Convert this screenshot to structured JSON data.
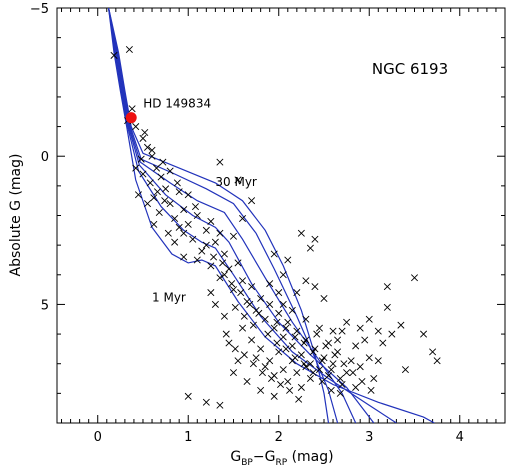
{
  "chart_data": {
    "type": "scatter",
    "title": "NGC 6193",
    "xlabel": "G_BP−G_RP (mag)",
    "xlabel_parts": {
      "prefix": "G",
      "sub1": "BP",
      "mid": "−G",
      "sub2": "RP",
      "suffix": " (mag)"
    },
    "ylabel": "Absolute G (mag)",
    "xlim": [
      -0.45,
      4.5
    ],
    "ylim": [
      -5,
      9
    ],
    "y_inverted": true,
    "x_ticks": [
      0,
      1,
      2,
      3,
      4
    ],
    "y_ticks": [
      -5,
      0,
      5
    ],
    "grid": false,
    "annotations": {
      "star_label": "HD 149834",
      "young_label": "1 Myr",
      "old_label": "30 Myr"
    },
    "colors": {
      "isochrone": "#2233bb",
      "highlight": "#ee1111",
      "marker": "#000000"
    },
    "highlight_point": {
      "name": "HD 149834",
      "x": 0.37,
      "y": -1.3
    },
    "isochrones": [
      {
        "age": "1 Myr",
        "points": [
          [
            0.12,
            -5.0
          ],
          [
            0.18,
            -3.5
          ],
          [
            0.25,
            -2.2
          ],
          [
            0.32,
            -1.0
          ],
          [
            0.42,
            0.8
          ],
          [
            0.6,
            2.4
          ],
          [
            0.82,
            3.3
          ],
          [
            1.0,
            3.6
          ],
          [
            1.15,
            3.5
          ],
          [
            1.3,
            3.7
          ],
          [
            1.55,
            4.9
          ],
          [
            1.85,
            6.1
          ],
          [
            2.2,
            7.0
          ],
          [
            2.6,
            7.7
          ],
          [
            3.1,
            8.3
          ],
          [
            3.6,
            8.8
          ],
          [
            3.72,
            9.0
          ]
        ]
      },
      {
        "age": "",
        "points": [
          [
            0.12,
            -5.0
          ],
          [
            0.19,
            -3.5
          ],
          [
            0.26,
            -2.2
          ],
          [
            0.33,
            -1.0
          ],
          [
            0.45,
            0.5
          ],
          [
            0.7,
            1.7
          ],
          [
            0.95,
            2.5
          ],
          [
            1.15,
            2.9
          ],
          [
            1.3,
            3.1
          ],
          [
            1.5,
            4.0
          ],
          [
            1.8,
            5.4
          ],
          [
            2.15,
            6.6
          ],
          [
            2.55,
            7.5
          ],
          [
            3.0,
            8.4
          ],
          [
            3.3,
            9.0
          ]
        ]
      },
      {
        "age": "",
        "points": [
          [
            0.12,
            -5.0
          ],
          [
            0.2,
            -3.5
          ],
          [
            0.27,
            -2.2
          ],
          [
            0.34,
            -1.0
          ],
          [
            0.46,
            0.3
          ],
          [
            0.75,
            1.3
          ],
          [
            1.05,
            2.0
          ],
          [
            1.3,
            2.4
          ],
          [
            1.45,
            2.9
          ],
          [
            1.7,
            4.3
          ],
          [
            2.0,
            5.6
          ],
          [
            2.35,
            6.7
          ],
          [
            2.75,
            7.8
          ],
          [
            3.05,
            9.0
          ]
        ]
      },
      {
        "age": "",
        "points": [
          [
            0.12,
            -5.0
          ],
          [
            0.21,
            -3.5
          ],
          [
            0.28,
            -2.2
          ],
          [
            0.35,
            -1.0
          ],
          [
            0.47,
            0.2
          ],
          [
            0.8,
            0.9
          ],
          [
            1.1,
            1.5
          ],
          [
            1.4,
            1.9
          ],
          [
            1.6,
            2.8
          ],
          [
            1.85,
            4.1
          ],
          [
            2.15,
            5.6
          ],
          [
            2.45,
            6.9
          ],
          [
            2.7,
            8.0
          ],
          [
            2.85,
            9.0
          ]
        ]
      },
      {
        "age": "",
        "points": [
          [
            0.12,
            -5.0
          ],
          [
            0.22,
            -3.5
          ],
          [
            0.29,
            -2.2
          ],
          [
            0.36,
            -1.0
          ],
          [
            0.48,
            0.1
          ],
          [
            0.85,
            0.6
          ],
          [
            1.2,
            1.1
          ],
          [
            1.5,
            1.6
          ],
          [
            1.75,
            2.6
          ],
          [
            1.95,
            3.8
          ],
          [
            2.2,
            5.4
          ],
          [
            2.4,
            6.8
          ],
          [
            2.55,
            7.9
          ],
          [
            2.65,
            9.0
          ]
        ]
      },
      {
        "age": "30 Myr",
        "points": [
          [
            0.12,
            -5.0
          ],
          [
            0.23,
            -3.5
          ],
          [
            0.3,
            -2.2
          ],
          [
            0.37,
            -1.0
          ],
          [
            0.5,
            -0.1
          ],
          [
            0.9,
            0.4
          ],
          [
            1.3,
            0.9
          ],
          [
            1.6,
            1.5
          ],
          [
            1.85,
            2.5
          ],
          [
            2.05,
            3.7
          ],
          [
            2.25,
            5.2
          ],
          [
            2.4,
            6.7
          ],
          [
            2.5,
            8.0
          ],
          [
            2.55,
            9.0
          ]
        ]
      }
    ],
    "points": [
      [
        0.18,
        -3.4
      ],
      [
        0.35,
        -3.6
      ],
      [
        0.33,
        -1.2
      ],
      [
        0.38,
        -1.6
      ],
      [
        0.42,
        -1.0
      ],
      [
        0.5,
        -0.6
      ],
      [
        0.55,
        -0.3
      ],
      [
        0.48,
        0.1
      ],
      [
        0.6,
        0.0
      ],
      [
        0.65,
        0.4
      ],
      [
        0.58,
        0.9
      ],
      [
        0.5,
        0.6
      ],
      [
        0.7,
        0.7
      ],
      [
        0.75,
        1.1
      ],
      [
        0.62,
        1.4
      ],
      [
        0.8,
        1.6
      ],
      [
        0.9,
        1.2
      ],
      [
        0.68,
        1.9
      ],
      [
        0.85,
        2.1
      ],
      [
        0.95,
        1.8
      ],
      [
        1.0,
        2.3
      ],
      [
        1.1,
        2.0
      ],
      [
        0.78,
        2.6
      ],
      [
        1.05,
        2.8
      ],
      [
        1.2,
        2.5
      ],
      [
        1.15,
        3.2
      ],
      [
        1.3,
        2.9
      ],
      [
        0.95,
        3.4
      ],
      [
        1.25,
        3.7
      ],
      [
        1.4,
        3.3
      ],
      [
        1.35,
        4.1
      ],
      [
        1.45,
        3.8
      ],
      [
        1.55,
        3.6
      ],
      [
        1.5,
        4.5
      ],
      [
        1.6,
        4.2
      ],
      [
        1.65,
        4.9
      ],
      [
        1.7,
        4.4
      ],
      [
        1.75,
        5.2
      ],
      [
        1.8,
        4.8
      ],
      [
        1.85,
        5.5
      ],
      [
        1.9,
        5.0
      ],
      [
        1.95,
        5.8
      ],
      [
        2.0,
        5.3
      ],
      [
        2.05,
        6.1
      ],
      [
        2.1,
        5.6
      ],
      [
        2.15,
        6.4
      ],
      [
        2.2,
        5.9
      ],
      [
        2.25,
        6.7
      ],
      [
        2.3,
        6.2
      ],
      [
        2.35,
        7.0
      ],
      [
        2.4,
        6.5
      ],
      [
        1.6,
        5.8
      ],
      [
        1.7,
        6.2
      ],
      [
        1.75,
        6.8
      ],
      [
        1.8,
        6.5
      ],
      [
        1.85,
        7.1
      ],
      [
        1.9,
        6.9
      ],
      [
        1.95,
        7.4
      ],
      [
        2.0,
        6.6
      ],
      [
        2.05,
        7.2
      ],
      [
        2.1,
        7.6
      ],
      [
        2.15,
        6.9
      ],
      [
        2.2,
        7.3
      ],
      [
        2.25,
        7.8
      ],
      [
        2.3,
        7.1
      ],
      [
        2.35,
        7.5
      ],
      [
        2.45,
        7.2
      ],
      [
        2.5,
        6.8
      ],
      [
        2.55,
        7.4
      ],
      [
        2.6,
        7.0
      ],
      [
        2.65,
        6.6
      ],
      [
        2.7,
        7.7
      ],
      [
        2.75,
        7.3
      ],
      [
        2.8,
        6.9
      ],
      [
        2.85,
        7.8
      ],
      [
        2.9,
        7.1
      ],
      [
        3.0,
        6.8
      ],
      [
        3.05,
        7.5
      ],
      [
        3.15,
        6.3
      ],
      [
        3.25,
        6.0
      ],
      [
        3.4,
        7.2
      ],
      [
        3.35,
        5.7
      ],
      [
        1.45,
        6.3
      ],
      [
        1.55,
        6.9
      ],
      [
        1.4,
        5.4
      ],
      [
        1.3,
        5.0
      ],
      [
        1.25,
        4.6
      ],
      [
        1.5,
        7.3
      ],
      [
        1.65,
        7.6
      ],
      [
        1.8,
        7.9
      ],
      [
        1.95,
        8.1
      ],
      [
        2.05,
        5.0
      ],
      [
        2.15,
        5.2
      ],
      [
        2.3,
        5.5
      ],
      [
        2.45,
        5.8
      ],
      [
        2.6,
        5.9
      ],
      [
        2.75,
        5.6
      ],
      [
        2.9,
        5.8
      ],
      [
        3.0,
        5.5
      ],
      [
        3.1,
        6.9
      ],
      [
        2.4,
        4.4
      ],
      [
        2.5,
        4.8
      ],
      [
        2.3,
        4.2
      ],
      [
        2.2,
        4.6
      ],
      [
        2.35,
        3.1
      ],
      [
        2.4,
        2.8
      ],
      [
        2.25,
        2.6
      ],
      [
        3.2,
        5.1
      ],
      [
        3.2,
        4.4
      ],
      [
        3.5,
        4.1
      ],
      [
        3.6,
        6.0
      ],
      [
        3.7,
        6.6
      ],
      [
        3.75,
        6.9
      ],
      [
        1.0,
        8.1
      ],
      [
        1.2,
        8.3
      ],
      [
        1.35,
        8.4
      ],
      [
        0.95,
        2.6
      ],
      [
        0.85,
        2.9
      ],
      [
        1.35,
        0.2
      ],
      [
        1.55,
        0.8
      ],
      [
        1.7,
        1.5
      ],
      [
        1.6,
        2.1
      ],
      [
        1.5,
        2.7
      ],
      [
        1.95,
        3.3
      ],
      [
        2.1,
        3.5
      ],
      [
        2.05,
        4.0
      ],
      [
        1.9,
        4.3
      ],
      [
        2.0,
        4.6
      ],
      [
        2.55,
        6.3
      ],
      [
        2.65,
        6.2
      ],
      [
        2.7,
        5.9
      ],
      [
        2.85,
        6.4
      ],
      [
        2.95,
        6.2
      ],
      [
        3.1,
        5.9
      ],
      [
        0.55,
        1.6
      ],
      [
        0.62,
        2.3
      ],
      [
        0.45,
        1.3
      ],
      [
        0.52,
        -0.8
      ],
      [
        0.6,
        -0.2
      ],
      [
        0.72,
        0.2
      ],
      [
        0.8,
        0.5
      ],
      [
        0.88,
        0.9
      ],
      [
        1.0,
        1.3
      ],
      [
        1.08,
        1.7
      ],
      [
        1.25,
        2.2
      ],
      [
        1.35,
        2.6
      ],
      [
        1.2,
        3.0
      ],
      [
        1.1,
        3.5
      ],
      [
        1.4,
        4.0
      ],
      [
        1.52,
        5.1
      ],
      [
        1.62,
        5.4
      ],
      [
        1.72,
        5.7
      ],
      [
        1.88,
        6.0
      ],
      [
        1.98,
        6.3
      ],
      [
        2.08,
        6.5
      ],
      [
        2.18,
        6.8
      ],
      [
        2.28,
        7.0
      ],
      [
        2.38,
        7.3
      ],
      [
        2.48,
        7.6
      ],
      [
        2.58,
        7.9
      ],
      [
        2.68,
        8.0
      ],
      [
        2.22,
        8.2
      ],
      [
        2.12,
        7.9
      ],
      [
        2.02,
        7.7
      ],
      [
        1.92,
        7.5
      ],
      [
        1.82,
        7.3
      ],
      [
        1.72,
        7.0
      ],
      [
        1.62,
        6.7
      ],
      [
        1.52,
        6.5
      ],
      [
        1.42,
        6.0
      ],
      [
        2.42,
        6.0
      ],
      [
        2.52,
        6.4
      ],
      [
        2.62,
        6.7
      ],
      [
        2.72,
        7.0
      ],
      [
        2.82,
        7.3
      ],
      [
        2.92,
        7.6
      ],
      [
        3.02,
        7.9
      ],
      [
        0.42,
        0.4
      ],
      [
        0.66,
        1.2
      ],
      [
        0.74,
        1.5
      ],
      [
        0.9,
        2.4
      ],
      [
        1.28,
        3.4
      ],
      [
        1.38,
        3.6
      ],
      [
        1.48,
        4.3
      ],
      [
        1.58,
        4.6
      ],
      [
        1.68,
        5.0
      ],
      [
        1.78,
        5.3
      ],
      [
        1.98,
        5.6
      ],
      [
        2.08,
        5.8
      ],
      [
        2.18,
        6.1
      ],
      [
        2.28,
        6.3
      ],
      [
        2.38,
        6.6
      ],
      [
        2.48,
        6.9
      ],
      [
        2.58,
        7.2
      ],
      [
        2.68,
        7.5
      ]
    ]
  }
}
